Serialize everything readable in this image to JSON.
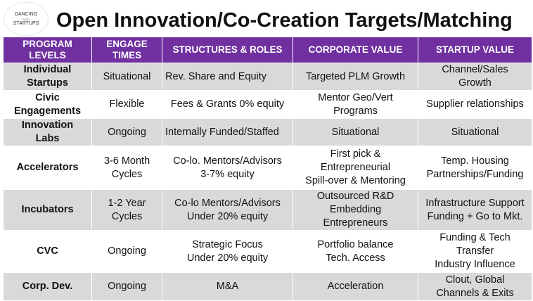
{
  "logo": {
    "line1": "DANCING",
    "line2": "WITH",
    "line3": "STARTUPS"
  },
  "title": "Open Innovation/Co-Creation Targets/Matching",
  "table": {
    "headers": [
      "PROGRAM\nLEVELS",
      "ENGAGE\nTIMES",
      "STRUCTURES & ROLES",
      "CORPORATE VALUE",
      "STARTUP  VALUE"
    ],
    "rows": [
      [
        "Individual\nStartups",
        "Situational",
        "Rev. Share and Equity",
        "Targeted PLM  Growth",
        "Channel/Sales\nGrowth"
      ],
      [
        "Civic\nEngagements",
        "Flexible",
        "Fees & Grants 0% equity",
        "Mentor Geo/Vert\nPrograms",
        "Supplier relationships"
      ],
      [
        "Innovation\nLabs",
        "Ongoing",
        "Internally  Funded/Staffed",
        "Situational",
        "Situational"
      ],
      [
        "Accelerators",
        "3-6 Month\nCycles",
        "Co-lo.  Mentors/Advisors\n3-7% equity",
        "First pick &\nEntrepreneurial\nSpill-over & Mentoring",
        "Temp. Housing\nPartnerships/Funding"
      ],
      [
        "Incubators",
        "1-2 Year\nCycles",
        "Co-lo Mentors/Advisors\nUnder 20% equity",
        "Outsourced R&D\nEmbedding\nEntrepreneurs",
        "Infrastructure Support\nFunding + Go to Mkt."
      ],
      [
        "CVC",
        "Ongoing",
        "Strategic Focus\nUnder 20% equity",
        "Portfolio balance\nTech. Access",
        "Funding & Tech\nTransfer\nIndustry Influence"
      ],
      [
        "Corp. Dev.",
        "Ongoing",
        "M&A",
        "Acceleration",
        "Clout, Global\nChannels & Exits"
      ]
    ]
  }
}
